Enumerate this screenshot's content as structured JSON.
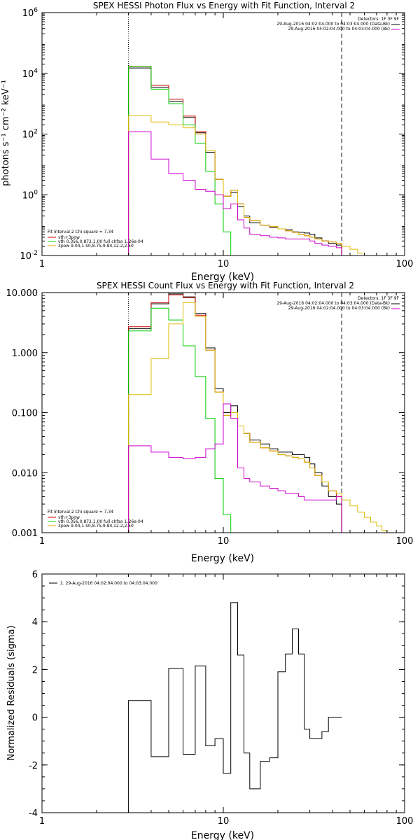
{
  "chart_data": [
    {
      "type": "line",
      "title": "SPEX HESSI Photon Flux vs Energy with Fit Function, Interval 2",
      "xlabel": "Energy (keV)",
      "ylabel": "photons s⁻¹ cm⁻² keV⁻¹",
      "xscale": "log",
      "yscale": "log",
      "xlim": [
        1,
        100
      ],
      "ylim": [
        0.01,
        1000000
      ],
      "xticks": [
        {
          "v": 1,
          "label": "1"
        },
        {
          "v": 10,
          "label": "10"
        },
        {
          "v": 100,
          "label": "100"
        }
      ],
      "yticks": [
        {
          "v": 0.01,
          "base": "10",
          "exp": "-2"
        },
        {
          "v": 1,
          "base": "10",
          "exp": "0"
        },
        {
          "v": 100,
          "base": "10",
          "exp": "2"
        },
        {
          "v": 10000,
          "base": "10",
          "exp": "4"
        },
        {
          "v": 1000000,
          "base": "10",
          "exp": "6"
        }
      ],
      "vlines": [
        {
          "x": 3.0,
          "style": "dotted"
        },
        {
          "x": 45.0,
          "style": "dashed"
        }
      ],
      "edges": [
        3,
        4,
        5,
        6,
        7,
        8,
        9,
        10,
        11,
        12,
        13,
        14,
        16,
        18,
        20,
        22,
        24,
        26,
        28,
        30,
        32,
        35,
        38,
        42,
        45,
        50,
        55,
        60
      ],
      "series": [
        {
          "name": "Data",
          "color": "#000000",
          "n": 24,
          "values": [
            15000,
            3500,
            1200,
            350,
            110,
            25,
            3.2,
            0.9,
            1.2,
            0.4,
            0.2,
            0.12,
            0.1,
            0.085,
            0.075,
            0.07,
            0.06,
            0.058,
            0.055,
            0.05,
            0.038,
            0.03,
            0.025,
            0.022
          ]
        },
        {
          "name": "vth+3pow",
          "color": "#cc0000",
          "n": 24,
          "values": [
            17000,
            4000,
            1400,
            390,
            120,
            28,
            3.2,
            0.9,
            1.4,
            0.5,
            0.18,
            0.14,
            0.1,
            0.09,
            0.075,
            0.065,
            0.058,
            0.05,
            0.045,
            0.04,
            0.035,
            0.03,
            0.028,
            0.025
          ]
        },
        {
          "name": "vth 0.356,0.872,1.00  full chfan 1.26e-04",
          "color": "#00cc00",
          "n": 9,
          "values": [
            17000,
            3000,
            1000,
            200,
            50,
            6,
            0.5,
            0.06,
            0.008
          ]
        },
        {
          "name": "3pow 9.04,1.50,8.75,9.84,12.2,2.50",
          "color": "#ddbb00",
          "n": 28,
          "values": [
            400,
            250,
            200,
            160,
            100,
            28,
            3.2,
            0.9,
            1.4,
            0.5,
            0.18,
            0.14,
            0.1,
            0.09,
            0.075,
            0.065,
            0.058,
            0.05,
            0.045,
            0.04,
            0.035,
            0.03,
            0.028,
            0.025,
            0.02,
            0.016,
            0.012,
            0.01
          ]
        },
        {
          "name": "Bkg",
          "color": "#cc00cc",
          "n": 24,
          "values": [
            120,
            15,
            5,
            3,
            1.5,
            1.3,
            1,
            0.35,
            0.5,
            0.15,
            0.08,
            0.05,
            0.045,
            0.04,
            0.038,
            0.035,
            0.035,
            0.035,
            0.035,
            0.03,
            0.025,
            0.022,
            0.02,
            0.018
          ]
        }
      ],
      "legend_header": "Detectors: 1F 3F 9F",
      "legend_entries": [
        {
          "text": "29-Aug-2016 04:02:04.000 to 04:03:04.000 (Data-Bk)",
          "color": "#000000"
        },
        {
          "text": "29-Aug-2016 04:02:04.000 to 04:03:04.000 (Bk)",
          "color": "#cc00cc"
        }
      ],
      "fit_header": "Fit Interval 2   Chi-square = 7.34",
      "fit_entries": [
        {
          "text": "vth+3pow",
          "color": "#cc0000"
        },
        {
          "text": "vth 0.356,0.872,1.00  full chfan 1.26e-04",
          "color": "#00cc00"
        },
        {
          "text": "3pow 9.04,1.50,8.75,9.84,12.2,2.50",
          "color": "#ddbb00"
        }
      ]
    },
    {
      "type": "line",
      "title": "SPEX HESSI Count Flux vs Energy with Fit Function, Interval 2",
      "xlabel": "Energy (keV)",
      "ylabel": "",
      "xscale": "log",
      "yscale": "log",
      "xlim": [
        1,
        100
      ],
      "ylim": [
        0.001,
        10
      ],
      "xticks": [
        {
          "v": 1,
          "label": "1"
        },
        {
          "v": 10,
          "label": "10"
        },
        {
          "v": 100,
          "label": "100"
        }
      ],
      "yticks": [
        {
          "v": 0.001,
          "label": "0.001"
        },
        {
          "v": 0.01,
          "label": "0.010"
        },
        {
          "v": 0.1,
          "label": "0.100"
        },
        {
          "v": 1,
          "label": "1.000"
        },
        {
          "v": 10,
          "label": "10.000"
        }
      ],
      "vlines": [
        {
          "x": 3.0,
          "style": "dotted"
        },
        {
          "x": 45.0,
          "style": "dashed"
        }
      ],
      "edges": [
        3,
        4,
        5,
        6,
        7,
        8,
        9,
        10,
        11,
        12,
        13,
        14,
        16,
        18,
        20,
        22,
        24,
        26,
        28,
        30,
        32,
        35,
        38,
        42,
        45,
        50,
        55,
        60,
        65,
        70,
        75,
        80,
        85
      ],
      "series": [
        {
          "name": "Data",
          "color": "#000000",
          "n": 24,
          "values": [
            2.5,
            6.5,
            9.5,
            8.5,
            4.5,
            1.2,
            0.25,
            0.1,
            0.13,
            0.06,
            0.045,
            0.035,
            0.03,
            0.025,
            0.022,
            0.022,
            0.02,
            0.02,
            0.018,
            0.014,
            0.01,
            0.006,
            0.004,
            0.003
          ]
        },
        {
          "name": "vth+3pow",
          "color": "#cc0000",
          "n": 24,
          "values": [
            2.7,
            6.8,
            9.2,
            8.2,
            4.2,
            1.1,
            0.22,
            0.09,
            0.1,
            0.06,
            0.045,
            0.032,
            0.026,
            0.023,
            0.02,
            0.019,
            0.018,
            0.017,
            0.015,
            0.012,
            0.009,
            0.007,
            0.005,
            0.004
          ]
        },
        {
          "name": "vth",
          "color": "#00cc00",
          "n": 9,
          "values": [
            2.3,
            5.5,
            3.5,
            1.3,
            0.4,
            0.08,
            0.008,
            0.002,
            0.0009
          ]
        },
        {
          "name": "3pow",
          "color": "#ddbb00",
          "n": 32,
          "values": [
            0.2,
            0.8,
            3.0,
            6.8,
            4.0,
            1.1,
            0.22,
            0.09,
            0.1,
            0.06,
            0.045,
            0.032,
            0.026,
            0.023,
            0.02,
            0.019,
            0.018,
            0.017,
            0.015,
            0.012,
            0.009,
            0.007,
            0.005,
            0.0045,
            0.0035,
            0.0028,
            0.0022,
            0.0018,
            0.0015,
            0.0013,
            0.0011,
            0.001
          ]
        },
        {
          "name": "Bkg",
          "color": "#cc00cc",
          "n": 24,
          "values": [
            0.028,
            0.022,
            0.018,
            0.017,
            0.018,
            0.025,
            0.03,
            0.14,
            0.08,
            0.012,
            0.008,
            0.007,
            0.006,
            0.0055,
            0.005,
            0.0045,
            0.0045,
            0.004,
            0.0035,
            0.0035,
            0.0035,
            0.0035,
            0.0035,
            0.004
          ]
        }
      ],
      "legend_header": "Detectors: 1F 3F 9F",
      "legend_entries": [
        {
          "text": "29-Aug-2016 04:02:04.000 to 04:03:04.000 (Data-Bk)",
          "color": "#000000"
        },
        {
          "text": "29-Aug-2016 04:02:04.000 to 04:03:04.000 (Bk)",
          "color": "#cc00cc"
        }
      ],
      "fit_header": "Fit Interval 2   Chi-square = 7.34",
      "fit_entries": [
        {
          "text": "vth+3pow",
          "color": "#cc0000"
        },
        {
          "text": "vth 0.356,0.872,1.00  full chfan 1.26e-04",
          "color": "#00cc00"
        },
        {
          "text": "3pow 9.04,1.50,8.75,9.84,12.2,2.50",
          "color": "#ddbb00"
        }
      ]
    },
    {
      "type": "line",
      "title": "",
      "xlabel": "Energy (keV)",
      "ylabel": "Normalized Residuals (sigma)",
      "xscale": "log",
      "yscale": "linear",
      "xlim": [
        1,
        100
      ],
      "ylim": [
        -4,
        6
      ],
      "xticks": [
        {
          "v": 1,
          "label": "1"
        },
        {
          "v": 10,
          "label": "10"
        },
        {
          "v": 100,
          "label": "100"
        }
      ],
      "yticks": [
        {
          "v": -4,
          "label": "-4"
        },
        {
          "v": -2,
          "label": "-2"
        },
        {
          "v": 0,
          "label": "0"
        },
        {
          "v": 2,
          "label": "2"
        },
        {
          "v": 4,
          "label": "4"
        },
        {
          "v": 6,
          "label": "6"
        }
      ],
      "edges": [
        3,
        4,
        5,
        6,
        7,
        8,
        9,
        10,
        11,
        12,
        13,
        14,
        16,
        18,
        20,
        22,
        24,
        26,
        28,
        30,
        32,
        35,
        38,
        42,
        45
      ],
      "series": [
        {
          "name": "2. 29-Aug-2016 04:02:04.000 to 04:03:04.000",
          "color": "#000000",
          "n": 24,
          "values": [
            0.7,
            -1.65,
            2.05,
            -1.55,
            2.15,
            -1.2,
            -0.9,
            -2.35,
            4.8,
            2.6,
            -1.5,
            -3.0,
            -1.85,
            -1.7,
            1.9,
            2.65,
            3.7,
            2.65,
            -0.5,
            -0.9,
            -0.9,
            -0.6,
            0,
            0
          ]
        }
      ],
      "legend_entries": [
        {
          "text": "2. 29-Aug-2016 04:02:04.000 to 04:03:04.000",
          "color": "#000000"
        }
      ]
    }
  ]
}
